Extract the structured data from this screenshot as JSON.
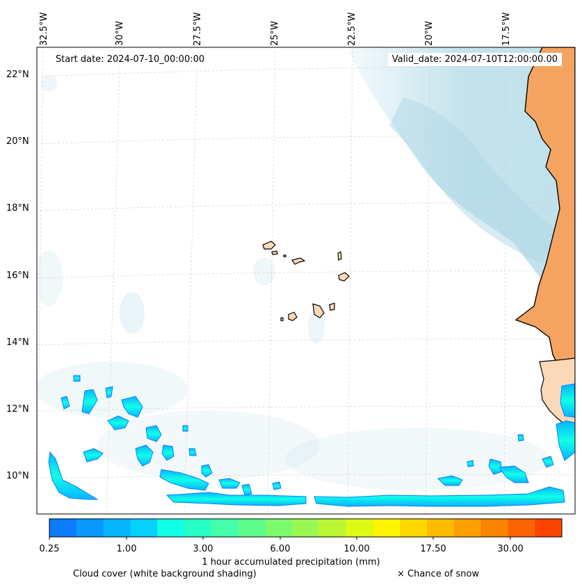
{
  "map": {
    "lon_labels": [
      "32.5°W",
      "30°W",
      "27.5°W",
      "25°W",
      "22.5°W",
      "20°W",
      "17.5°W"
    ],
    "lat_labels": [
      "22°N",
      "20°N",
      "18°N",
      "16°N",
      "14°N",
      "12°N",
      "10°N"
    ],
    "start_date": "Start date: 2024-07-10_00:00:00",
    "valid_date": "Valid_date: 2024-07-10T12:00:00.00",
    "land_color": "#f4a460",
    "ocean_color": "#ffffff",
    "cloud_color": "#add8e6",
    "region": "Cape Verde / West African coast"
  },
  "colorbar": {
    "ticks": [
      "0.25",
      "1.00",
      "3.00",
      "6.00",
      "10.00",
      "17.50",
      "30.00"
    ],
    "colors": [
      "#0a7cff",
      "#0998ff",
      "#06b4ff",
      "#05d2ff",
      "#10ffe6",
      "#28ffc6",
      "#44ffaa",
      "#5efc8c",
      "#7cfa6e",
      "#9af852",
      "#bcf634",
      "#dcfa16",
      "#fcf400",
      "#fcd800",
      "#fcbc00",
      "#fca000",
      "#fc8400",
      "#fc6400",
      "#fc4400"
    ],
    "label": "1 hour accumulated precipitation (mm)"
  },
  "legend": {
    "cloud_note": "Cloud cover (white background shading)",
    "snow_note": "× Chance of snow"
  }
}
